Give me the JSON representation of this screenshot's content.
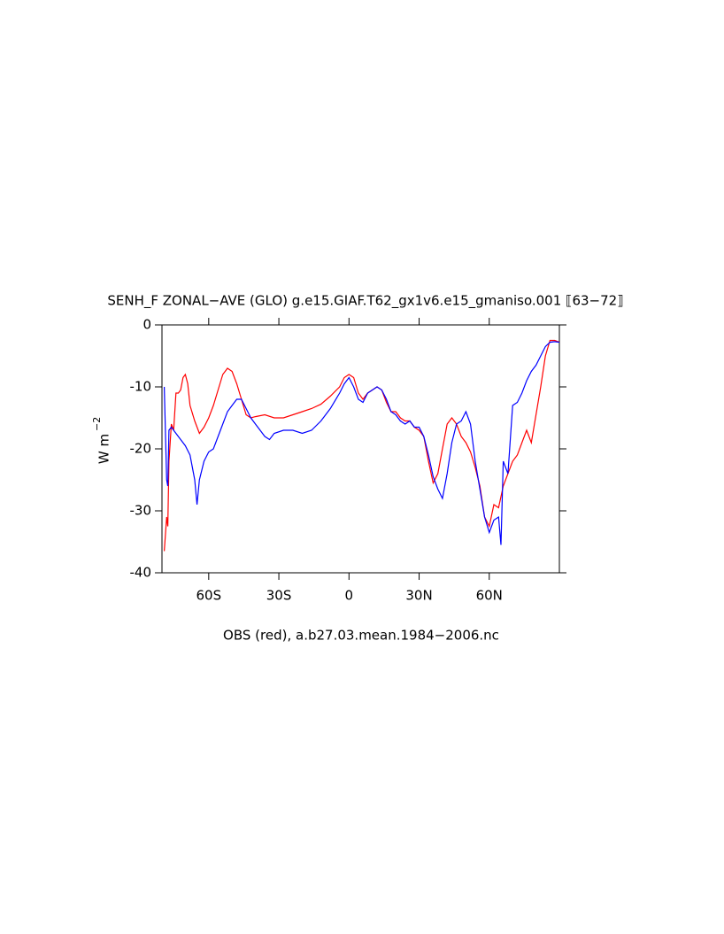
{
  "chart_data": {
    "type": "line",
    "title": "SENH_F ZONAL−AVE (GLO) g.e15.GIAF.T62_gx1v6.e15_gmaniso.001 ⟦63−72⟧",
    "subtitle": "OBS (red), a.b27.03.mean.1984−2006.nc",
    "ylabel": "W m",
    "ylabel_exponent": "−2",
    "xlim": [
      -80,
      90
    ],
    "ylim": [
      -40,
      0
    ],
    "xticks": [
      {
        "value": -60,
        "label": "60S"
      },
      {
        "value": -30,
        "label": "30S"
      },
      0,
      {
        "value": 30,
        "label": "30N"
      },
      {
        "value": 60,
        "label": "60N"
      }
    ],
    "yticks": [
      -40,
      -30,
      -20,
      -10,
      0
    ],
    "series": [
      {
        "color": "#ff0000",
        "x": [
          -79,
          -78,
          -77.5,
          -77,
          -76,
          -75,
          -74,
          -73,
          -72,
          -71,
          -70,
          -69,
          -68,
          -66,
          -64,
          -62,
          -60,
          -58,
          -56,
          -54,
          -52,
          -50,
          -48,
          -46,
          -44,
          -42,
          -40,
          -36,
          -32,
          -28,
          -24,
          -20,
          -16,
          -12,
          -8,
          -4,
          -2,
          0,
          2,
          4,
          6,
          8,
          10,
          12,
          14,
          16,
          18,
          20,
          22,
          24,
          26,
          28,
          30,
          32,
          34,
          36,
          38,
          40,
          42,
          44,
          46,
          48,
          50,
          52,
          54,
          56,
          58,
          60,
          62,
          64,
          66,
          68,
          70,
          72,
          74,
          76,
          78,
          80,
          82,
          84,
          86,
          88,
          90
        ],
        "values": [
          -36.5,
          -31,
          -32.5,
          -22,
          -16,
          -17,
          -11,
          -11,
          -10.5,
          -8.5,
          -8,
          -9.5,
          -13,
          -15.5,
          -17.5,
          -16.5,
          -15,
          -13,
          -10.5,
          -8,
          -7,
          -7.5,
          -9.5,
          -12,
          -14.5,
          -15,
          -14.8,
          -14.5,
          -15,
          -15,
          -14.5,
          -14,
          -13.5,
          -12.8,
          -11.5,
          -10,
          -8.5,
          -8,
          -8.5,
          -11,
          -12,
          -11,
          -10.5,
          -10,
          -10.5,
          -12.5,
          -14,
          -14,
          -15,
          -15.5,
          -15.5,
          -16.5,
          -17,
          -18,
          -22,
          -25.5,
          -24,
          -20,
          -16,
          -15,
          -16,
          -18,
          -19,
          -20.5,
          -23,
          -26,
          -31,
          -32.5,
          -29,
          -29.5,
          -26,
          -24,
          -22,
          -21,
          -19,
          -17,
          -19,
          -14.5,
          -10,
          -5,
          -2.5,
          -2.5,
          -2.8
        ]
      },
      {
        "color": "#0000ff",
        "x": [
          -79,
          -78,
          -77.5,
          -77,
          -76,
          -74,
          -72,
          -70,
          -68,
          -66,
          -65,
          -64,
          -62,
          -60,
          -58,
          -56,
          -54,
          -52,
          -50,
          -48,
          -46,
          -44,
          -42,
          -40,
          -38,
          -36,
          -34,
          -32,
          -28,
          -24,
          -20,
          -16,
          -12,
          -8,
          -4,
          -2,
          0,
          2,
          4,
          6,
          8,
          10,
          12,
          14,
          16,
          18,
          20,
          22,
          24,
          26,
          28,
          30,
          32,
          34,
          36,
          38,
          40,
          42,
          44,
          46,
          48,
          50,
          52,
          54,
          56,
          58,
          60,
          62,
          64,
          65,
          66,
          68,
          70,
          72,
          74,
          76,
          78,
          80,
          82,
          84,
          86,
          88,
          90
        ],
        "values": [
          -10,
          -25,
          -26,
          -17,
          -16.5,
          -17.5,
          -18.5,
          -19.5,
          -21,
          -25,
          -29,
          -25,
          -22,
          -20.5,
          -20,
          -18,
          -16,
          -14,
          -13,
          -12,
          -12,
          -13.5,
          -15,
          -16,
          -17,
          -18,
          -18.5,
          -17.5,
          -17,
          -17,
          -17.5,
          -17,
          -15.5,
          -13.5,
          -11,
          -9.5,
          -8.5,
          -10,
          -12,
          -12.5,
          -11,
          -10.5,
          -10,
          -10.5,
          -12,
          -14,
          -14.5,
          -15.5,
          -16,
          -15.5,
          -16.5,
          -16.5,
          -18,
          -21,
          -24.5,
          -26.5,
          -28,
          -24,
          -19,
          -16,
          -15.5,
          -14,
          -16,
          -22,
          -26.5,
          -31,
          -33.5,
          -31.5,
          -31,
          -35.5,
          -22,
          -24,
          -13,
          -12.5,
          -11,
          -9,
          -7.5,
          -6.5,
          -5,
          -3.5,
          -2.8,
          -2.7,
          -2.8
        ]
      }
    ]
  }
}
